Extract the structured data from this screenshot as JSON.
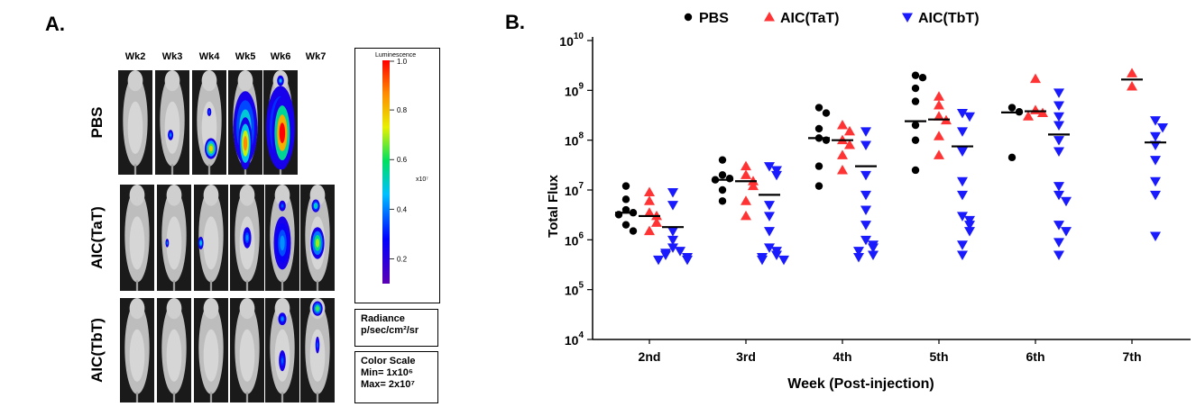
{
  "panel_a": {
    "letter": "A.",
    "weeks": [
      "Wk2",
      "Wk3",
      "Wk4",
      "Wk5",
      "Wk6",
      "Wk7"
    ],
    "groups": [
      {
        "label": "PBS",
        "images": 5
      },
      {
        "label": "AIC(TaT)",
        "images": 6
      },
      {
        "label": "AIC(TbT)",
        "images": 6
      }
    ],
    "colorbar": {
      "title": "Luminescence",
      "ticks": [
        "1.0",
        "0.8",
        "0.6",
        "0.4",
        "0.2"
      ],
      "tick_values": [
        1.0,
        0.8,
        0.6,
        0.4,
        0.2
      ],
      "exponent": "x10⁷"
    },
    "radiance": {
      "line1": "Radiance",
      "line2": "p/sec/cm²/sr"
    },
    "color_scale": {
      "line1": "Color Scale",
      "line2": "Min= 1x10⁶",
      "line3": "Max= 2x10⁷"
    }
  },
  "panel_b": {
    "letter": "B."
  },
  "chart_data": {
    "type": "scatter",
    "xlabel": "Week (Post-injection)",
    "ylabel": "Total Flux",
    "categories": [
      "2nd",
      "3rd",
      "4th",
      "5th",
      "6th",
      "7th"
    ],
    "y_scale": "log",
    "ylim": [
      10000,
      10000000000
    ],
    "y_ticks": [
      {
        "value": 10000,
        "base": "10",
        "exp": "4"
      },
      {
        "value": 100000,
        "base": "10",
        "exp": "5"
      },
      {
        "value": 1000000,
        "base": "10",
        "exp": "6"
      },
      {
        "value": 10000000,
        "base": "10",
        "exp": "7"
      },
      {
        "value": 100000000,
        "base": "10",
        "exp": "8"
      },
      {
        "value": 1000000000,
        "base": "10",
        "exp": "9"
      },
      {
        "value": 10000000000,
        "base": "10",
        "exp": "10"
      }
    ],
    "legend_position": "top",
    "grid": false,
    "series": [
      {
        "name": "PBS",
        "marker": "circle",
        "color": "#000000",
        "points": {
          "2nd": [
            12000000,
            6500000,
            4000000,
            3500000,
            3200000,
            2000000,
            1500000
          ],
          "3rd": [
            40000000,
            20000000,
            17000000,
            16000000,
            10000000,
            6000000
          ],
          "4th": [
            450000000,
            350000000,
            170000000,
            110000000,
            100000000,
            30000000,
            12000000
          ],
          "5th": [
            2000000000,
            1800000000,
            1100000000,
            600000000,
            200000000,
            100000000,
            25000000
          ],
          "6th": [
            450000000,
            370000000,
            45000000
          ],
          "7th": []
        },
        "medians": {
          "2nd": 3500000,
          "3rd": 16000000,
          "4th": 110000000,
          "5th": 240000000,
          "6th": 360000000
        }
      },
      {
        "name": "AIC(TaT)",
        "marker": "triangle-up",
        "color": "#ff3333",
        "points": {
          "2nd": [
            9000000,
            6000000,
            3500000,
            3000000,
            2200000,
            1500000
          ],
          "3rd": [
            30000000,
            20000000,
            15000000,
            12000000,
            6000000,
            3000000
          ],
          "4th": [
            200000000,
            150000000,
            100000000,
            80000000,
            50000000,
            25000000
          ],
          "5th": [
            750000000,
            500000000,
            300000000,
            250000000,
            120000000,
            50000000
          ],
          "6th": [
            1700000000,
            400000000,
            350000000,
            300000000
          ],
          "7th": [
            2200000000,
            1200000000
          ]
        },
        "medians": {
          "2nd": 3000000,
          "3rd": 15000000,
          "4th": 100000000,
          "5th": 260000000,
          "6th": 380000000,
          "7th": 1650000000
        }
      },
      {
        "name": "AIC(TbT)",
        "marker": "triangle-down",
        "color": "#1a1aff",
        "points": {
          "2nd": [
            9000000,
            5000000,
            1500000,
            1000000,
            700000,
            600000,
            550000,
            500000,
            450000,
            400000,
            400000
          ],
          "3rd": [
            30000000,
            25000000,
            20000000,
            5000000,
            3000000,
            1500000,
            700000,
            600000,
            500000,
            450000,
            400000,
            400000
          ],
          "4th": [
            150000000,
            80000000,
            20000000,
            8000000,
            4000000,
            2000000,
            1000000,
            800000,
            700000,
            600000,
            500000,
            450000
          ],
          "5th": [
            350000000,
            300000000,
            150000000,
            60000000,
            15000000,
            8000000,
            3000000,
            2500000,
            2000000,
            1500000,
            800000,
            500000
          ],
          "6th": [
            900000000,
            500000000,
            300000000,
            200000000,
            100000000,
            60000000,
            12000000,
            8000000,
            6000000,
            2000000,
            1500000,
            900000,
            500000
          ],
          "7th": [
            250000000,
            180000000,
            120000000,
            80000000,
            40000000,
            15000000,
            8000000,
            1200000
          ]
        },
        "medians": {
          "2nd": 1800000,
          "3rd": 8000000,
          "4th": 30000000,
          "5th": 75000000,
          "6th": 130000000,
          "7th": 90000000
        }
      }
    ]
  }
}
